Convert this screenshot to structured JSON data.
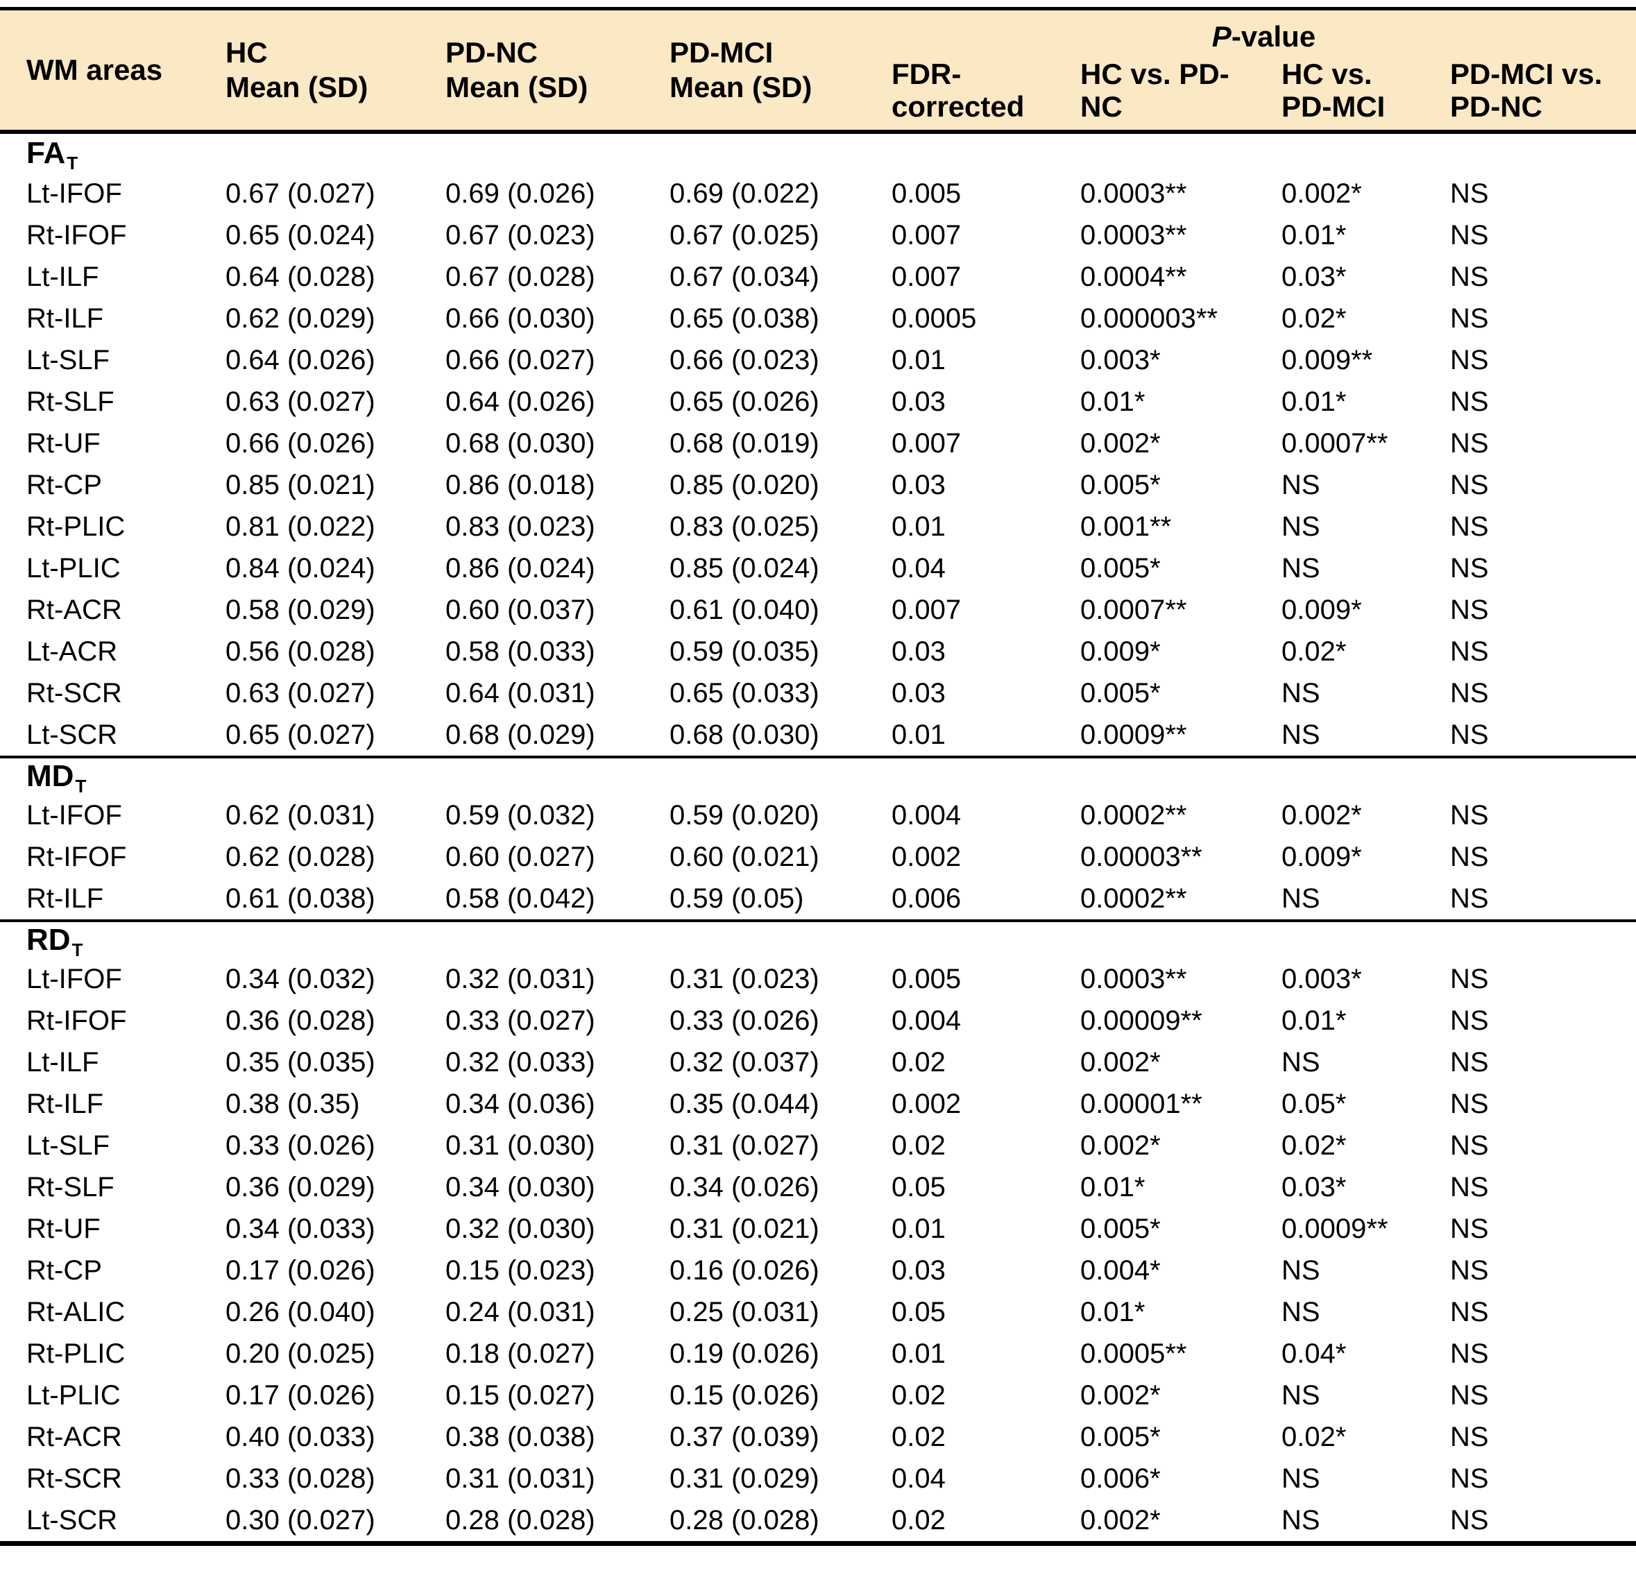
{
  "colors": {
    "header_bg": "#FBE8C4",
    "border": "#000000",
    "text": "#000000"
  },
  "header": {
    "wm_areas": "WM areas",
    "hc": [
      "HC",
      "Mean (SD)"
    ],
    "pd_nc": [
      "PD-NC",
      "Mean (SD)"
    ],
    "pd_mci": [
      "PD-MCI",
      "Mean (SD)"
    ],
    "fdr": [
      "FDR-",
      "corrected"
    ],
    "p_group_italic": "P",
    "p_group_rest": "-value",
    "hc_vs_pdnc": [
      "HC vs. PD-",
      "NC"
    ],
    "hc_vs_pdmci": [
      "HC vs.",
      "PD-MCI"
    ],
    "pdmci_vs_pdnc": [
      "PD-MCI vs.",
      "PD-NC"
    ]
  },
  "sections": [
    {
      "label": "FA",
      "sub": "T",
      "rows": [
        [
          "Lt-IFOF",
          "0.67 (0.027)",
          "0.69 (0.026)",
          "0.69 (0.022)",
          "0.005",
          "0.0003**",
          "0.002*",
          "NS"
        ],
        [
          "Rt-IFOF",
          "0.65 (0.024)",
          "0.67 (0.023)",
          "0.67 (0.025)",
          "0.007",
          "0.0003**",
          "0.01*",
          "NS"
        ],
        [
          "Lt-ILF",
          "0.64 (0.028)",
          "0.67 (0.028)",
          "0.67 (0.034)",
          "0.007",
          "0.0004**",
          "0.03*",
          "NS"
        ],
        [
          "Rt-ILF",
          "0.62 (0.029)",
          "0.66 (0.030)",
          "0.65 (0.038)",
          "0.0005",
          "0.000003**",
          "0.02*",
          "NS"
        ],
        [
          "Lt-SLF",
          "0.64 (0.026)",
          "0.66 (0.027)",
          "0.66 (0.023)",
          "0.01",
          "0.003*",
          "0.009**",
          "NS"
        ],
        [
          "Rt-SLF",
          "0.63 (0.027)",
          "0.64 (0.026)",
          "0.65 (0.026)",
          "0.03",
          "0.01*",
          "0.01*",
          "NS"
        ],
        [
          "Rt-UF",
          "0.66 (0.026)",
          "0.68 (0.030)",
          "0.68 (0.019)",
          "0.007",
          "0.002*",
          "0.0007**",
          "NS"
        ],
        [
          "Rt-CP",
          "0.85 (0.021)",
          "0.86 (0.018)",
          "0.85 (0.020)",
          "0.03",
          "0.005*",
          "NS",
          "NS"
        ],
        [
          "Rt-PLIC",
          "0.81 (0.022)",
          "0.83 (0.023)",
          "0.83 (0.025)",
          "0.01",
          "0.001**",
          "NS",
          "NS"
        ],
        [
          "Lt-PLIC",
          "0.84 (0.024)",
          "0.86 (0.024)",
          "0.85 (0.024)",
          "0.04",
          "0.005*",
          "NS",
          "NS"
        ],
        [
          "Rt-ACR",
          "0.58 (0.029)",
          "0.60 (0.037)",
          "0.61 (0.040)",
          "0.007",
          "0.0007**",
          "0.009*",
          "NS"
        ],
        [
          "Lt-ACR",
          "0.56 (0.028)",
          "0.58 (0.033)",
          "0.59 (0.035)",
          "0.03",
          "0.009*",
          "0.02*",
          "NS"
        ],
        [
          "Rt-SCR",
          "0.63 (0.027)",
          "0.64 (0.031)",
          "0.65 (0.033)",
          "0.03",
          "0.005*",
          "NS",
          "NS"
        ],
        [
          "Lt-SCR",
          "0.65 (0.027)",
          "0.68 (0.029)",
          "0.68 (0.030)",
          "0.01",
          "0.0009**",
          "NS",
          "NS"
        ]
      ]
    },
    {
      "label": "MD",
      "sub": "T",
      "rows": [
        [
          "Lt-IFOF",
          "0.62 (0.031)",
          "0.59 (0.032)",
          "0.59 (0.020)",
          "0.004",
          "0.0002**",
          "0.002*",
          "NS"
        ],
        [
          "Rt-IFOF",
          "0.62 (0.028)",
          "0.60 (0.027)",
          "0.60 (0.021)",
          "0.002",
          "0.00003**",
          "0.009*",
          "NS"
        ],
        [
          "Rt-ILF",
          "0.61 (0.038)",
          "0.58 (0.042)",
          "0.59 (0.05)",
          "0.006",
          "0.0002**",
          "NS",
          "NS"
        ]
      ]
    },
    {
      "label": "RD",
      "sub": "T",
      "rows": [
        [
          "Lt-IFOF",
          "0.34 (0.032)",
          "0.32 (0.031)",
          "0.31 (0.023)",
          "0.005",
          "0.0003**",
          "0.003*",
          "NS"
        ],
        [
          "Rt-IFOF",
          "0.36 (0.028)",
          "0.33 (0.027)",
          "0.33 (0.026)",
          "0.004",
          "0.00009**",
          "0.01*",
          "NS"
        ],
        [
          "Lt-ILF",
          "0.35 (0.035)",
          "0.32 (0.033)",
          "0.32 (0.037)",
          "0.02",
          "0.002*",
          "NS",
          "NS"
        ],
        [
          "Rt-ILF",
          "0.38 (0.35)",
          "0.34 (0.036)",
          "0.35 (0.044)",
          "0.002",
          "0.00001**",
          "0.05*",
          "NS"
        ],
        [
          "Lt-SLF",
          "0.33 (0.026)",
          "0.31 (0.030)",
          "0.31 (0.027)",
          "0.02",
          "0.002*",
          "0.02*",
          "NS"
        ],
        [
          "Rt-SLF",
          "0.36 (0.029)",
          "0.34 (0.030)",
          "0.34 (0.026)",
          "0.05",
          "0.01*",
          "0.03*",
          "NS"
        ],
        [
          "Rt-UF",
          "0.34 (0.033)",
          "0.32 (0.030)",
          "0.31 (0.021)",
          "0.01",
          "0.005*",
          "0.0009**",
          "NS"
        ],
        [
          "Rt-CP",
          "0.17 (0.026)",
          "0.15 (0.023)",
          "0.16 (0.026)",
          "0.03",
          "0.004*",
          "NS",
          "NS"
        ],
        [
          "Rt-ALIC",
          "0.26 (0.040)",
          "0.24 (0.031)",
          "0.25 (0.031)",
          "0.05",
          "0.01*",
          "NS",
          "NS"
        ],
        [
          "Rt-PLIC",
          "0.20 (0.025)",
          "0.18 (0.027)",
          "0.19 (0.026)",
          "0.01",
          "0.0005**",
          "0.04*",
          "NS"
        ],
        [
          "Lt-PLIC",
          "0.17 (0.026)",
          "0.15 (0.027)",
          "0.15 (0.026)",
          "0.02",
          "0.002*",
          "NS",
          "NS"
        ],
        [
          "Rt-ACR",
          "0.40 (0.033)",
          "0.38 (0.038)",
          "0.37 (0.039)",
          "0.02",
          "0.005*",
          "0.02*",
          "NS"
        ],
        [
          "Rt-SCR",
          "0.33 (0.028)",
          "0.31 (0.031)",
          "0.31 (0.029)",
          "0.04",
          "0.006*",
          "NS",
          "NS"
        ],
        [
          "Lt-SCR",
          "0.30 (0.027)",
          "0.28 (0.028)",
          "0.28 (0.028)",
          "0.02",
          "0.002*",
          "NS",
          "NS"
        ]
      ]
    }
  ]
}
